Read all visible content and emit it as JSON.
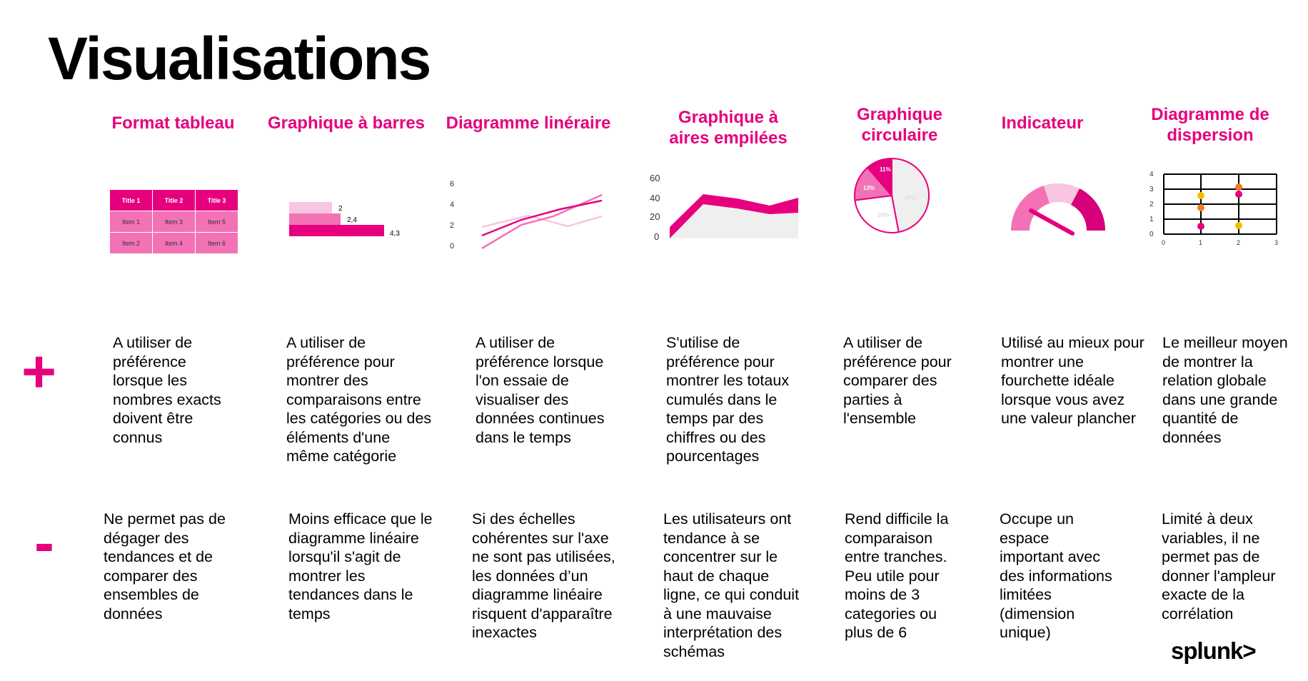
{
  "title": "Visualisations",
  "signs": {
    "plus": "+",
    "minus": "-"
  },
  "logo": "splunk>",
  "columns": [
    {
      "heading": "Format tableau",
      "pro": "A utiliser de préférence lorsque les nombres exacts doivent être connus",
      "con": "Ne permet pas de dégager des tendances et de comparer des ensembles de données"
    },
    {
      "heading": "Graphique à barres",
      "pro": "A utiliser de préférence pour montrer des comparaisons entre les catégories ou des éléments d'une même catégorie",
      "con": "Moins efficace que le diagramme linéaire lorsqu'il s'agit de montrer les tendances dans le temps"
    },
    {
      "heading": "Diagramme linéraire",
      "pro": "A utiliser de préférence lorsque l'on essaie de visualiser des données continues dans le temps",
      "con": "Si des échelles cohérentes sur l'axe ne sont pas utilisées, les données d’un diagramme linéaire risquent d'apparaître inexactes"
    },
    {
      "heading": "Graphique à aires empilées",
      "pro": "S'utilise de préférence pour montrer les totaux cumulés dans le temps par des chiffres ou des pourcentages",
      "con": "Les utilisateurs ont tendance à se concentrer sur le haut de chaque ligne, ce qui conduit à une mauvaise interprétation des schémas"
    },
    {
      "heading": "Graphique circulaire",
      "pro": "A utiliser de préférence pour comparer des parties à l'ensemble",
      "con": "Rend difficile la comparaison entre tranches. Peu utile pour moins de 3 categories ou plus de 6"
    },
    {
      "heading": "Indicateur",
      "pro": "Utilisé au mieux pour montrer une fourchette idéale lorsque vous avez une valeur plancher",
      "con": "Occupe un espace important avec des informations limitées (dimension unique)"
    },
    {
      "heading": "Diagramme de dispersion",
      "pro": "Le meilleur moyen de montrer la relation globale dans une grande quantité de données",
      "con": "Limité à deux variables, il ne permet pas de donner l'ampleur exacte de la corrélation"
    }
  ],
  "table_sample": {
    "headers": [
      "Title 1",
      "Title 2",
      "Title 3"
    ],
    "rows": [
      [
        "Item 1",
        "Item 3",
        "Item 5"
      ],
      [
        "Item 2",
        "Item 4",
        "Item 6"
      ]
    ]
  },
  "bar_sample": {
    "labels": [
      "2",
      "2,4",
      "4,3"
    ]
  },
  "line_sample": {
    "ticks": [
      "6",
      "4",
      "2",
      "0"
    ]
  },
  "area_sample": {
    "ticks": [
      "60",
      "40",
      "20",
      "0"
    ]
  },
  "pie_sample": {
    "labels": [
      "11%",
      "13%",
      "29%",
      "47%"
    ]
  },
  "scatter_sample": {
    "yticks": [
      "4",
      "3",
      "2",
      "1",
      "0"
    ],
    "xticks": [
      "0",
      "1",
      "2",
      "3"
    ]
  },
  "colors": {
    "accent": "#e6007e",
    "light": "#f8c6e0",
    "mid": "#f372b5",
    "grey": "#efefef"
  }
}
